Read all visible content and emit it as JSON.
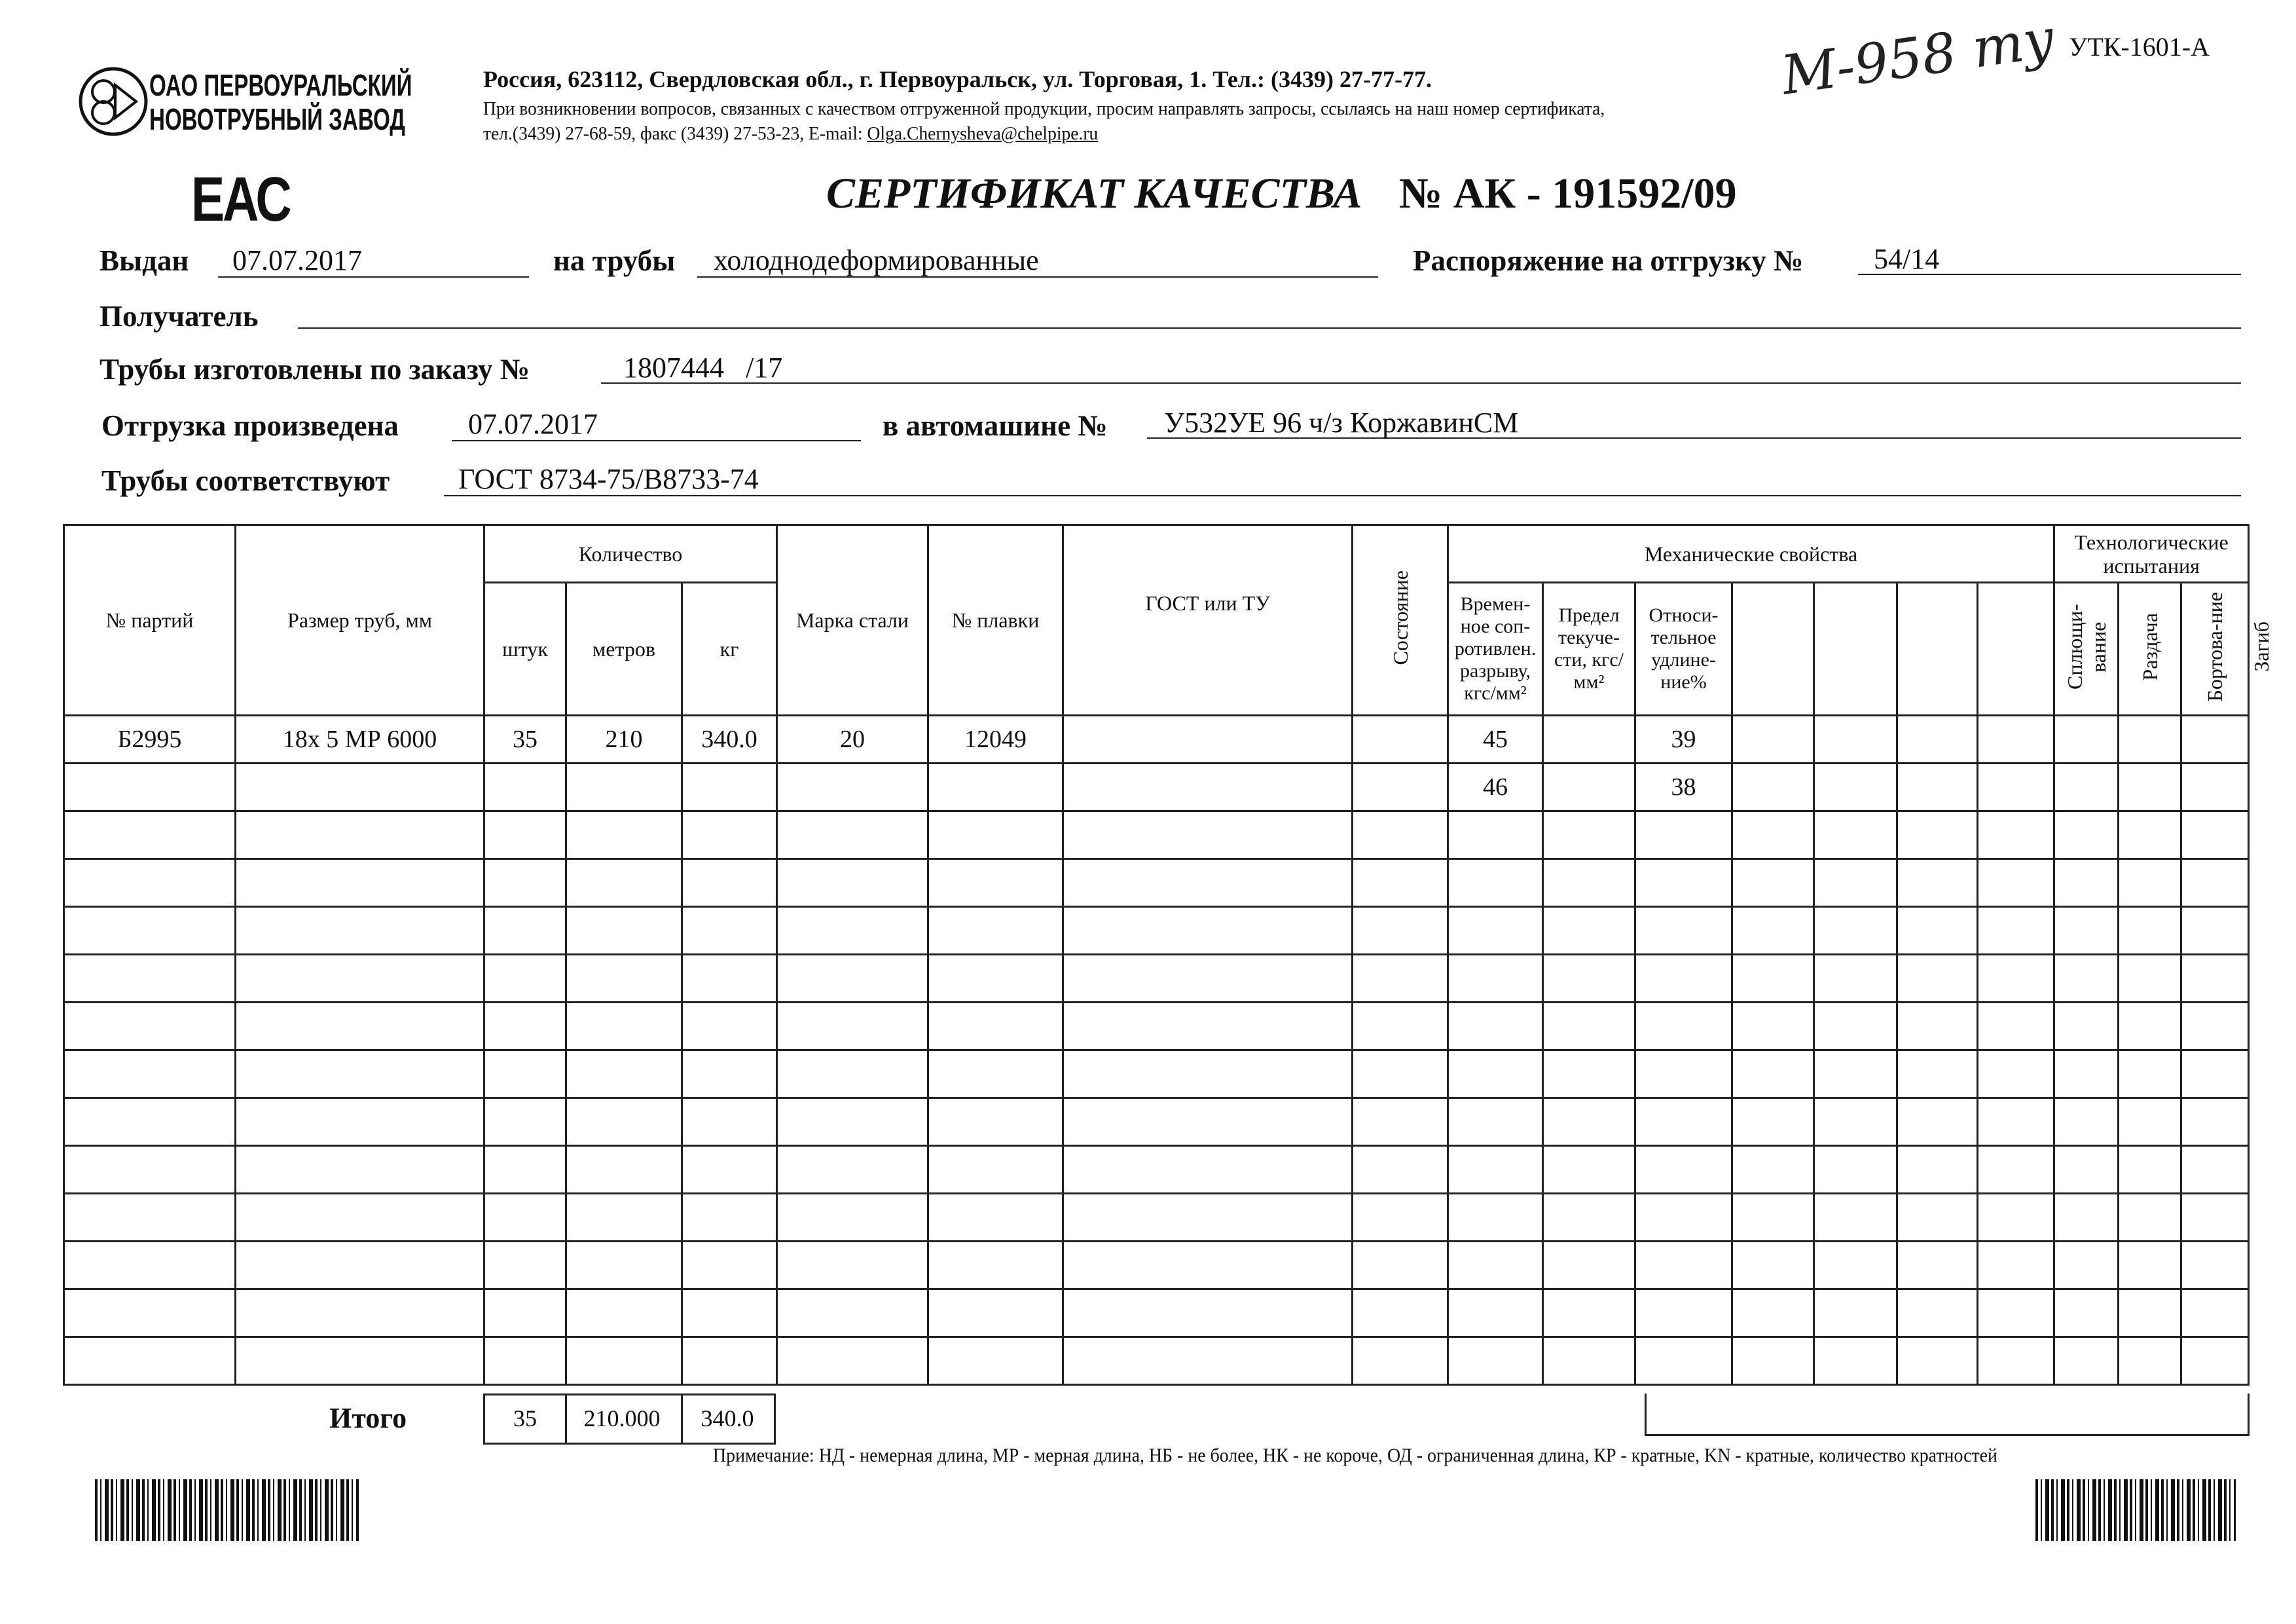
{
  "header": {
    "company_line1": "ОАО ПЕРВОУРАЛЬСКИЙ",
    "company_line2": "НОВОТРУБНЫЙ ЗАВОД",
    "address": "Россия, 623112, Свердловская обл., г. Первоуральск, ул. Торговая, 1. Тел.: (3439) 27-77-77.",
    "notice": "При возникновении вопросов, связанных с качеством отгруженной продукции, просим направлять запросы, ссылаясь на наш номер сертификата,",
    "contacts": "тел.(3439) 27-68-59, факс (3439) 27-53-23,  E-mail: ",
    "email": "Olga.Chernysheva@chelpipe.ru",
    "form_code": "УТК-1601-А",
    "handwritten_note": "М-958 ту",
    "eac_mark": "ЕАС"
  },
  "title": {
    "text": "СЕРТИФИКАТ КАЧЕСТВА",
    "number_label": "№  АК -",
    "number": "191592/09"
  },
  "fields": {
    "issued_label": "Выдан",
    "issued": "07.07.2017",
    "pipes_label": "на трубы",
    "pipes": "холоднодеформированные",
    "order_ship_label": "Распоряжение на отгрузку №",
    "order_ship": "54/14",
    "recipient_label": "Получатель",
    "recipient": "",
    "made_order_label": "Трубы изготовлены по заказу №",
    "made_order": "1807444   /17",
    "shipped_label": "Отгрузка произведена",
    "shipped": "07.07.2017",
    "vehicle_label": "в автомашине №",
    "vehicle": "У532УЕ 96 ч/з КоржавинСМ",
    "conform_label": "Трубы соответствуют",
    "conform": "ГОСТ 8734-75/В8733-74"
  },
  "table": {
    "headers": {
      "batch": "№ партий",
      "size": "Размер труб, мм",
      "quantity": "Количество",
      "pcs": "штук",
      "meters": "метров",
      "kg": "кг",
      "grade": "Марка стали",
      "heat": "№ плавки",
      "gost": "ГОСТ или ТУ",
      "state": "Состояние",
      "mech": "Механические свойства",
      "tensile": "Времен-ное соп-ротивлен. разрыву, кгс/мм²",
      "yield": "Предел текуче-сти, кгс/мм²",
      "elong": "Относи-тельное удлине-ние%",
      "tech": "Технологические испытания",
      "flatten": "Сплющи-вание",
      "expand": "Раздача",
      "flange": "Бортова-ние",
      "bend": "Загиб"
    },
    "rows": [
      [
        "Б2995",
        "18х 5 МР 6000",
        "35",
        "210",
        "340.0",
        "20",
        "12049",
        "",
        "",
        "45",
        "",
        "39",
        "",
        "",
        "",
        "",
        "",
        "",
        ""
      ],
      [
        "",
        "",
        "",
        "",
        "",
        "",
        "",
        "",
        "",
        "46",
        "",
        "38",
        "",
        "",
        "",
        "",
        "",
        "",
        ""
      ]
    ],
    "total_label": "Итого",
    "total_pcs": "35",
    "total_meters": "210.000",
    "total_kg": "340.0"
  },
  "note": "Примечание: НД - немерная длина, МР - мерная длина, НБ - не более, НК - не короче, ОД - ограниченная длина, КР - кратные, KN - кратные, количество кратностей"
}
